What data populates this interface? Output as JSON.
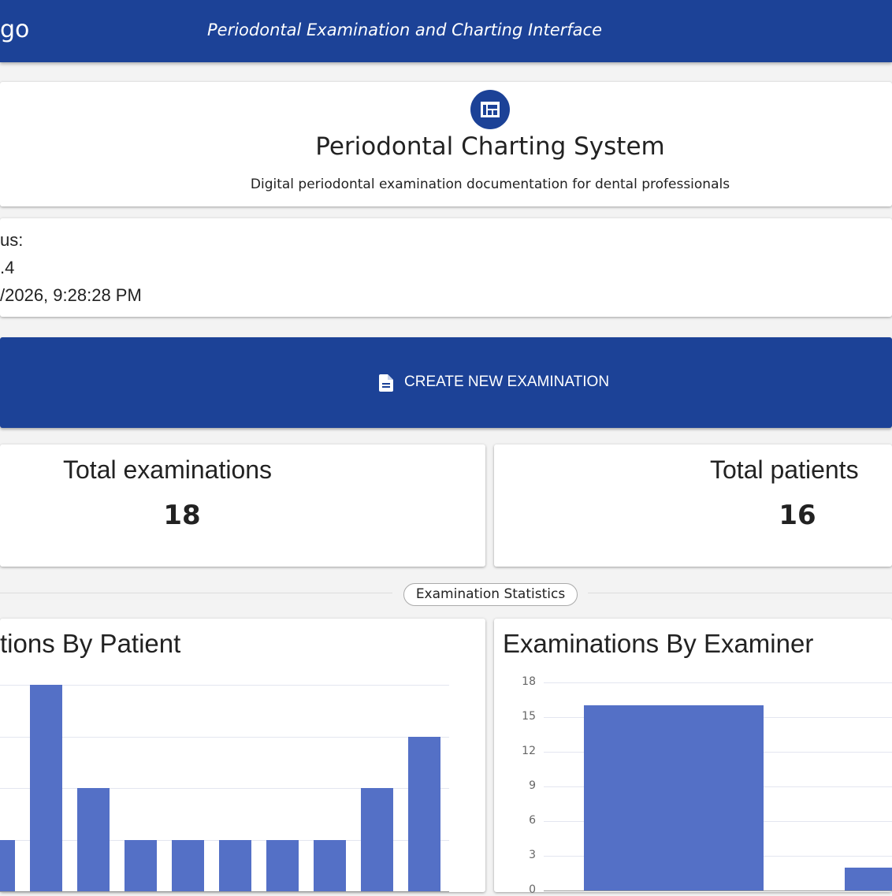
{
  "header": {
    "brand_fragment": "go",
    "subtitle": "Periodontal Examination and Charting Interface"
  },
  "hero": {
    "icon": "dashboard-icon",
    "title": "Periodontal Charting System",
    "description": "Digital periodontal examination documentation for dental professionals"
  },
  "status": {
    "line1": "us:",
    "line2": ".4",
    "line3": "/2026, 9:28:28 PM"
  },
  "cta": {
    "icon": "document-icon",
    "label": "CREATE NEW EXAMINATION"
  },
  "stats": [
    {
      "label": "Total examinations",
      "value": "18"
    },
    {
      "label": "Total patients",
      "value": "16"
    }
  ],
  "section_label": "Examination Statistics",
  "colors": {
    "primary": "#1c4297",
    "bar": "#5470c6"
  },
  "chart_data": [
    {
      "type": "bar",
      "title": "tions By Patient",
      "values": [
        1,
        4,
        2,
        1,
        1,
        1,
        1,
        1,
        2,
        3
      ],
      "ylim": [
        0,
        4
      ]
    },
    {
      "type": "bar",
      "title": "Examinations By Examiner",
      "values": [
        16,
        2
      ],
      "yticks": [
        "0",
        "3",
        "6",
        "9",
        "12",
        "15",
        "18"
      ],
      "ylim": [
        0,
        18
      ]
    }
  ]
}
